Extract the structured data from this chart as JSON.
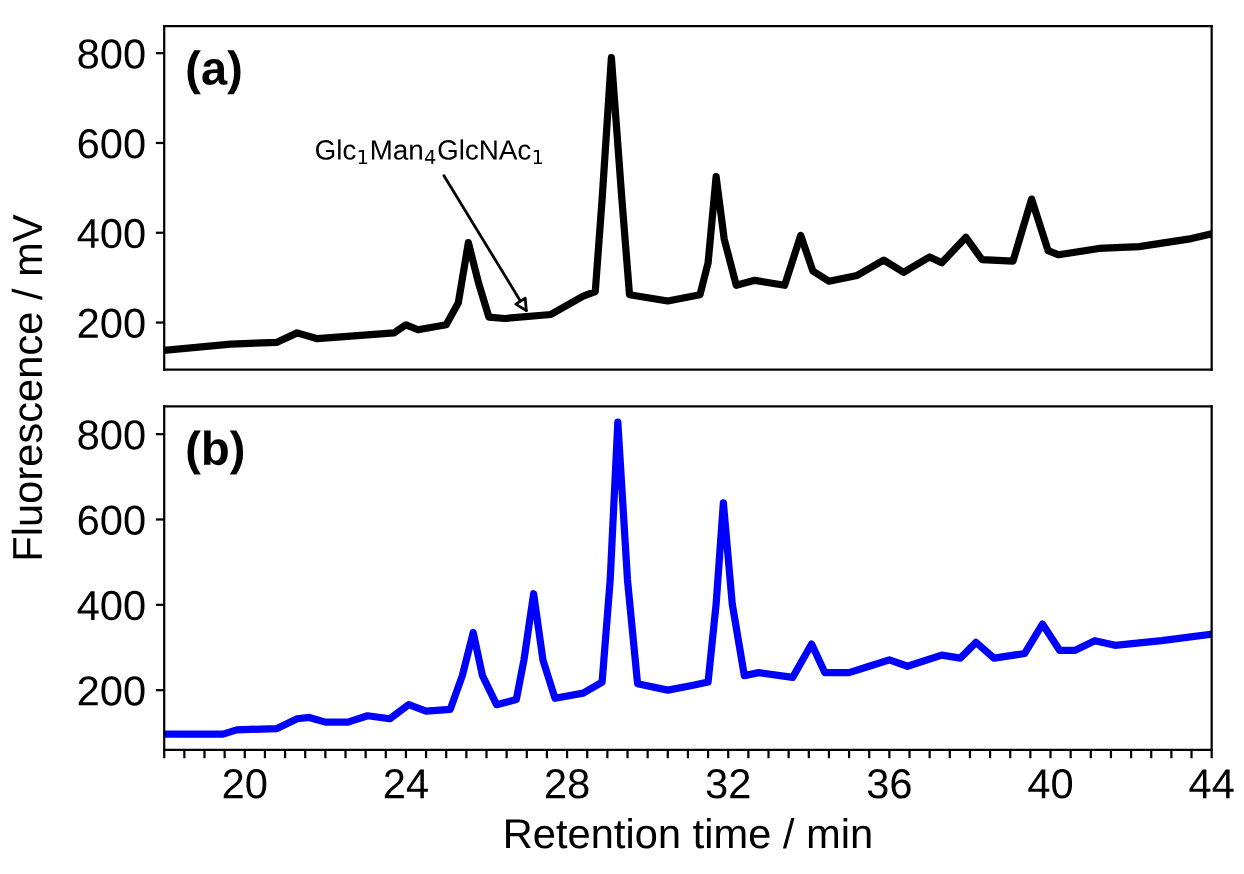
{
  "chart_data": [
    {
      "type": "line",
      "title": "(a)",
      "ylabel": "Fluorescence / mV",
      "xlim": [
        18,
        44
      ],
      "ylim": [
        95,
        860
      ],
      "yticks": [
        200,
        400,
        600,
        800
      ],
      "tick_labels": "y",
      "grid": false,
      "legend": false,
      "x": [
        18,
        19.65,
        20.8,
        21.3,
        21.8,
        23.7,
        24.0,
        24.3,
        25.0,
        25.3,
        25.55,
        25.8,
        26.06,
        26.45,
        27.6,
        28.4,
        28.7,
        28.87,
        29.1,
        29.36,
        29.55,
        30.5,
        31.3,
        31.5,
        31.7,
        31.9,
        32.2,
        32.66,
        33.4,
        33.8,
        34.1,
        34.5,
        35.2,
        35.86,
        36.35,
        37.0,
        37.3,
        37.9,
        38.3,
        39.07,
        39.53,
        39.94,
        40.2,
        41.2,
        42.2,
        43.5,
        43.97
      ],
      "series": [
        {
          "color": "#000000",
          "values": [
            138,
            152,
            156,
            177,
            164,
            177,
            195,
            184,
            195,
            244,
            378,
            289,
            212,
            209,
            218,
            259,
            269,
            475,
            790,
            475,
            262,
            248,
            262,
            333,
            525,
            386,
            283,
            294,
            283,
            394,
            315,
            292,
            305,
            339,
            312,
            346,
            333,
            390,
            340,
            337,
            475,
            360,
            351,
            365,
            369,
            387,
            397
          ]
        }
      ],
      "annotations": [
        {
          "text": "Glc$_{1}$Man$_{4}$GlcNAc$_{1}$",
          "x": 27.1,
          "y": 210
        }
      ]
    },
    {
      "type": "line",
      "title": "(b)",
      "xlabel": "Retention time / min",
      "xlim": [
        18,
        44
      ],
      "ylim": [
        60,
        865
      ],
      "yticks": [
        200,
        400,
        600,
        800
      ],
      "grid": false,
      "legend": false,
      "xticks": [
        {
          "value": 18,
          "label": null
        },
        {
          "value": 18.5,
          "label": null
        },
        {
          "value": 19,
          "label": null
        },
        {
          "value": 19.5,
          "label": null
        },
        20,
        {
          "value": 20.5,
          "label": null
        },
        {
          "value": 21,
          "label": null
        },
        {
          "value": 21.5,
          "label": null
        },
        {
          "value": 22,
          "label": null
        },
        {
          "value": 22.5,
          "label": null
        },
        {
          "value": 23,
          "label": null
        },
        {
          "value": 23.5,
          "label": null
        },
        24,
        {
          "value": 24.5,
          "label": null
        },
        {
          "value": 25,
          "label": null
        },
        {
          "value": 25.5,
          "label": null
        },
        {
          "value": 26,
          "label": null
        },
        {
          "value": 26.5,
          "label": null
        },
        {
          "value": 27,
          "label": null
        },
        {
          "value": 27.5,
          "label": null
        },
        28,
        {
          "value": 28.5,
          "label": null
        },
        {
          "value": 29,
          "label": null
        },
        {
          "value": 29.5,
          "label": null
        },
        {
          "value": 30,
          "label": null
        },
        {
          "value": 30.5,
          "label": null
        },
        {
          "value": 31,
          "label": null
        },
        {
          "value": 31.5,
          "label": null
        },
        32,
        {
          "value": 32.5,
          "label": null
        },
        {
          "value": 33,
          "label": null
        },
        {
          "value": 33.5,
          "label": null
        },
        {
          "value": 34,
          "label": null
        },
        {
          "value": 34.5,
          "label": null
        },
        {
          "value": 35,
          "label": null
        },
        {
          "value": 35.5,
          "label": null
        },
        36,
        {
          "value": 36.5,
          "label": null
        },
        {
          "value": 37,
          "label": null
        },
        {
          "value": 37.5,
          "label": null
        },
        {
          "value": 38,
          "label": null
        },
        {
          "value": 38.5,
          "label": null
        },
        {
          "value": 39,
          "label": null
        },
        {
          "value": 39.5,
          "label": null
        },
        40,
        {
          "value": 40.5,
          "label": null
        },
        {
          "value": 41,
          "label": null
        },
        {
          "value": 41.5,
          "label": null
        },
        {
          "value": 42,
          "label": null
        },
        {
          "value": 42.5,
          "label": null
        },
        {
          "value": 43,
          "label": null
        },
        {
          "value": 43.5,
          "label": null
        },
        44
      ],
      "x": [
        18,
        19.46,
        19.8,
        20.8,
        21.3,
        21.6,
        22.0,
        22.56,
        23.05,
        23.6,
        24.07,
        24.5,
        25.1,
        25.4,
        25.67,
        25.9,
        26.25,
        26.74,
        26.93,
        27.17,
        27.4,
        27.7,
        28.4,
        28.87,
        29.07,
        29.26,
        29.5,
        29.75,
        30.5,
        31.1,
        31.5,
        31.7,
        31.88,
        32.1,
        32.4,
        32.76,
        33.6,
        34.07,
        34.4,
        35.0,
        35.5,
        36.0,
        36.45,
        37.3,
        37.76,
        38.15,
        38.6,
        39.36,
        39.8,
        40.23,
        40.6,
        41.1,
        41.6,
        42.76,
        43.97
      ],
      "series": [
        {
          "color": "#0000ff",
          "values": [
            97,
            97,
            107,
            110,
            133,
            136,
            125,
            125,
            140,
            133,
            166,
            151,
            155,
            234,
            335,
            234,
            166,
            178,
            271,
            426,
            271,
            181,
            193,
            219,
            458,
            828,
            458,
            215,
            200,
            211,
            219,
            402,
            639,
            402,
            234,
            241,
            230,
            308,
            241,
            241,
            256,
            271,
            256,
            282,
            275,
            312,
            275,
            286,
            355,
            293,
            293,
            316,
            305,
            316,
            331
          ]
        }
      ]
    }
  ]
}
